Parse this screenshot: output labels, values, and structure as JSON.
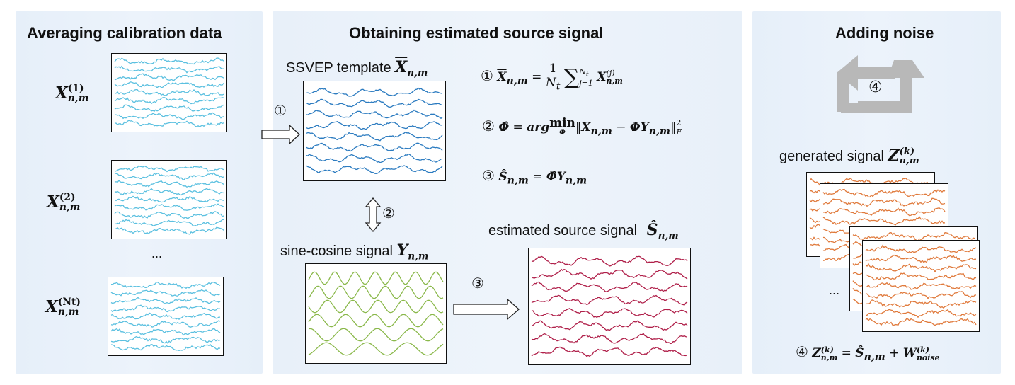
{
  "panels": {
    "calibration": {
      "title": "Averaging calibration data",
      "trial_labels": [
        {
          "base": "X",
          "sub": "n,m",
          "sup": "(1)"
        },
        {
          "base": "X",
          "sub": "n,m",
          "sup": "(2)"
        },
        {
          "base": "X",
          "sub": "n,m",
          "sup": "(Nt)"
        }
      ],
      "ellipsis": "..."
    },
    "estimation": {
      "title": "Obtaining estimated source signal",
      "template_label": "SSVEP template",
      "sine_cosine_label": "sine-cosine signal",
      "estimated_label": "estimated source signal",
      "step_markers": [
        "①",
        "②",
        "③"
      ],
      "equations": [
        {
          "marker": "①",
          "text": "X̄n,m = (1/Nt) Σj=1..Nt Xn,m(j)"
        },
        {
          "marker": "②",
          "text": "Φ̂ = argminΦ ‖X̄n,m − ΦYn,m‖F²"
        },
        {
          "marker": "③",
          "text": "Ŝn,m = Φ̂Yn,m"
        }
      ]
    },
    "noise": {
      "title": "Adding noise",
      "cycle_marker": "④",
      "generated_label": "generated signal",
      "ellipsis": "...",
      "equation": {
        "marker": "④",
        "text": "Zn,m(k) = Ŝn,m + Wnoise(k)"
      }
    }
  },
  "colors": {
    "panel_bg": "#e8f0f9",
    "calibration_trace": "#5bc0e0",
    "template_trace": "#2b7bc0",
    "sine_trace": "#8ab84a",
    "estimated_trace": "#b0204a",
    "generated_trace": "#e07a3c",
    "cycle_arrow": "#b8b8b8"
  },
  "icons": {
    "cycle": "circular-arrows-icon",
    "flow_arrow": "hollow-arrow-icon"
  }
}
